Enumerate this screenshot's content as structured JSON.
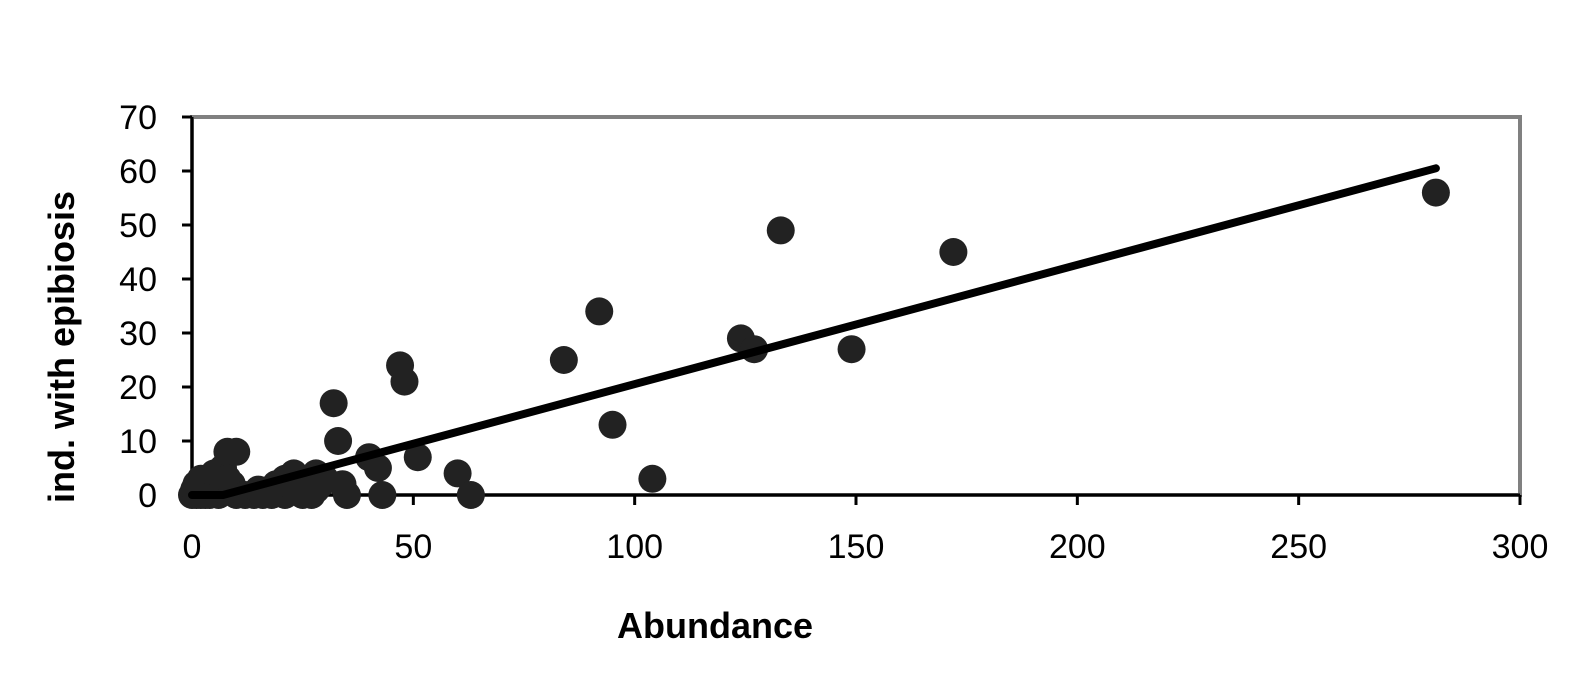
{
  "chart_data": {
    "type": "scatter",
    "title": "",
    "xlabel": "Abundance",
    "ylabel": "ind. with epibiosis",
    "xlim": [
      0,
      300
    ],
    "ylim": [
      0,
      70
    ],
    "x_ticks": [
      0,
      50,
      100,
      150,
      200,
      250,
      300
    ],
    "y_ticks": [
      0,
      10,
      20,
      30,
      40,
      50,
      60,
      70
    ],
    "grid": false,
    "legend": "none",
    "colors": {
      "points": "#222222",
      "line": "#000000",
      "frame": "#808080"
    },
    "points": [
      {
        "x": 0,
        "y": 0
      },
      {
        "x": 0.5,
        "y": 1
      },
      {
        "x": 1,
        "y": 0
      },
      {
        "x": 1,
        "y": 2
      },
      {
        "x": 2,
        "y": 0
      },
      {
        "x": 2,
        "y": 1
      },
      {
        "x": 2,
        "y": 3
      },
      {
        "x": 3,
        "y": 0
      },
      {
        "x": 3,
        "y": 2
      },
      {
        "x": 4,
        "y": 3
      },
      {
        "x": 4,
        "y": 0
      },
      {
        "x": 5,
        "y": 1
      },
      {
        "x": 5,
        "y": 4
      },
      {
        "x": 6,
        "y": 2
      },
      {
        "x": 6,
        "y": 0
      },
      {
        "x": 7,
        "y": 5
      },
      {
        "x": 7,
        "y": 1
      },
      {
        "x": 8,
        "y": 8
      },
      {
        "x": 8,
        "y": 3
      },
      {
        "x": 9,
        "y": 2
      },
      {
        "x": 10,
        "y": 8
      },
      {
        "x": 10,
        "y": 0
      },
      {
        "x": 12,
        "y": 0
      },
      {
        "x": 14,
        "y": 0
      },
      {
        "x": 15,
        "y": 1
      },
      {
        "x": 16,
        "y": 0
      },
      {
        "x": 18,
        "y": 0
      },
      {
        "x": 19,
        "y": 2
      },
      {
        "x": 20,
        "y": 1
      },
      {
        "x": 21,
        "y": 3
      },
      {
        "x": 21,
        "y": 0
      },
      {
        "x": 22,
        "y": 2
      },
      {
        "x": 23,
        "y": 4
      },
      {
        "x": 24,
        "y": 1
      },
      {
        "x": 25,
        "y": 0
      },
      {
        "x": 26,
        "y": 2
      },
      {
        "x": 27,
        "y": 0
      },
      {
        "x": 28,
        "y": 4
      },
      {
        "x": 28,
        "y": 1
      },
      {
        "x": 29,
        "y": 2
      },
      {
        "x": 30,
        "y": 3
      },
      {
        "x": 32,
        "y": 17
      },
      {
        "x": 33,
        "y": 10
      },
      {
        "x": 34,
        "y": 2
      },
      {
        "x": 35,
        "y": 0
      },
      {
        "x": 40,
        "y": 7
      },
      {
        "x": 42,
        "y": 5
      },
      {
        "x": 43,
        "y": 0
      },
      {
        "x": 47,
        "y": 24
      },
      {
        "x": 48,
        "y": 21
      },
      {
        "x": 51,
        "y": 7
      },
      {
        "x": 60,
        "y": 4
      },
      {
        "x": 63,
        "y": 0
      },
      {
        "x": 84,
        "y": 25
      },
      {
        "x": 92,
        "y": 34
      },
      {
        "x": 95,
        "y": 13
      },
      {
        "x": 104,
        "y": 3
      },
      {
        "x": 124,
        "y": 29
      },
      {
        "x": 127,
        "y": 27
      },
      {
        "x": 133,
        "y": 49
      },
      {
        "x": 149,
        "y": 27
      },
      {
        "x": 172,
        "y": 45
      },
      {
        "x": 281,
        "y": 56
      }
    ],
    "trendline": [
      {
        "x": 0,
        "y": 0
      },
      {
        "x": 7,
        "y": 0
      },
      {
        "x": 281,
        "y": 60.5
      }
    ]
  }
}
